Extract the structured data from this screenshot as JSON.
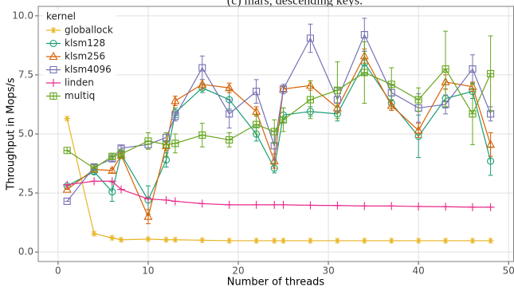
{
  "chart_data": {
    "type": "line",
    "title": "(c) mars, descending keys.",
    "x_label": "Number of threads",
    "y_label": "Throughput in Mops/s",
    "legend_title": "kernel",
    "legend": "top-left",
    "grid": true,
    "xlim": [
      -2.2,
      50.6
    ],
    "ylim": [
      -0.4,
      10.4
    ],
    "xticks": [
      0,
      10,
      20,
      30,
      40,
      50
    ],
    "yticks": [
      {
        "value": 0,
        "label": "0.0"
      },
      {
        "value": 2.5,
        "label": "2.5"
      },
      {
        "value": 5,
        "label": "5.0"
      },
      {
        "value": 7.5,
        "label": "7.5"
      },
      {
        "value": 10,
        "label": "10.0"
      }
    ],
    "x": [
      1,
      4,
      6,
      7,
      10,
      12,
      13,
      16,
      19,
      22,
      24,
      25,
      28,
      31,
      34,
      37,
      40,
      43,
      46,
      48
    ],
    "series": [
      {
        "name": "globallock",
        "color": "#e8b422",
        "marker": "asterisk",
        "values": [
          5.65,
          0.78,
          0.6,
          0.52,
          0.55,
          0.52,
          0.52,
          0.5,
          0.48,
          0.48,
          0.48,
          0.48,
          0.48,
          0.48,
          0.48,
          0.48,
          0.48,
          0.48,
          0.48,
          0.48
        ],
        "errors": [
          0,
          0,
          0,
          0,
          0,
          0,
          0,
          0,
          0,
          0,
          0,
          0,
          0,
          0,
          0,
          0,
          0,
          0,
          0,
          0
        ]
      },
      {
        "name": "klsm128",
        "color": "#1b9e77",
        "marker": "circle",
        "values": [
          2.8,
          3.4,
          2.55,
          4.15,
          2.2,
          3.9,
          5.9,
          6.95,
          6.45,
          5.0,
          3.55,
          5.8,
          5.95,
          5.85,
          8.0,
          6.3,
          4.9,
          6.5,
          6.8,
          3.85
        ],
        "errors": [
          0,
          0.1,
          0.4,
          0.1,
          0.6,
          0.3,
          0.2,
          0.2,
          0.4,
          0.3,
          0.2,
          0.3,
          0.2,
          0.3,
          0.5,
          0.3,
          0.9,
          0.4,
          0.3,
          0.6
        ]
      },
      {
        "name": "klsm256",
        "color": "#d95f02",
        "marker": "triangle",
        "values": [
          2.65,
          3.5,
          3.45,
          4.1,
          1.5,
          4.5,
          6.4,
          7.1,
          6.95,
          5.95,
          3.85,
          6.9,
          7.05,
          6.1,
          8.3,
          6.2,
          5.15,
          7.2,
          7.0,
          4.55
        ],
        "errors": [
          0,
          0.1,
          0.1,
          0.1,
          0.3,
          0.2,
          0.2,
          0.2,
          0.2,
          0.2,
          0.3,
          0.1,
          0.2,
          0.2,
          0.3,
          0.2,
          0.3,
          0.3,
          0.2,
          0.5
        ]
      },
      {
        "name": "klsm4096",
        "color": "#7570b3",
        "marker": "square",
        "values": [
          2.15,
          3.6,
          3.95,
          4.4,
          4.55,
          4.85,
          5.75,
          7.8,
          5.85,
          6.8,
          4.5,
          6.9,
          9.05,
          6.45,
          9.2,
          6.75,
          6.1,
          6.25,
          7.75,
          5.85
        ],
        "errors": [
          0,
          0.1,
          0.1,
          0.1,
          0.15,
          0.2,
          0.2,
          0.5,
          0.6,
          0.5,
          0.6,
          0.2,
          0.6,
          0.5,
          0.7,
          0.3,
          0.6,
          0.4,
          0.6,
          0.3
        ]
      },
      {
        "name": "linden",
        "color": "#e7298a",
        "marker": "plus",
        "values": [
          2.85,
          3.0,
          3.0,
          2.65,
          2.25,
          2.2,
          2.15,
          2.05,
          2.0,
          2.0,
          2.0,
          2.0,
          1.98,
          1.97,
          1.95,
          1.95,
          1.93,
          1.92,
          1.9,
          1.9
        ],
        "errors": [
          0,
          0,
          0,
          0,
          0,
          0,
          0,
          0,
          0,
          0,
          0,
          0,
          0,
          0,
          0,
          0,
          0,
          0,
          0,
          0
        ]
      },
      {
        "name": "multiq",
        "color": "#66a61e",
        "marker": "square-plus",
        "values": [
          4.3,
          3.55,
          4.05,
          4.15,
          4.7,
          4.55,
          4.6,
          4.95,
          4.75,
          5.4,
          5.1,
          5.6,
          6.45,
          6.85,
          7.6,
          7.1,
          6.45,
          7.75,
          5.85,
          7.55
        ],
        "errors": [
          0,
          0,
          0.1,
          0.2,
          0.35,
          0.5,
          0.4,
          0.5,
          0.3,
          0.4,
          0.5,
          0.5,
          0.8,
          1.2,
          1.3,
          0.7,
          0.5,
          1.6,
          1.3,
          1.6
        ]
      }
    ]
  }
}
